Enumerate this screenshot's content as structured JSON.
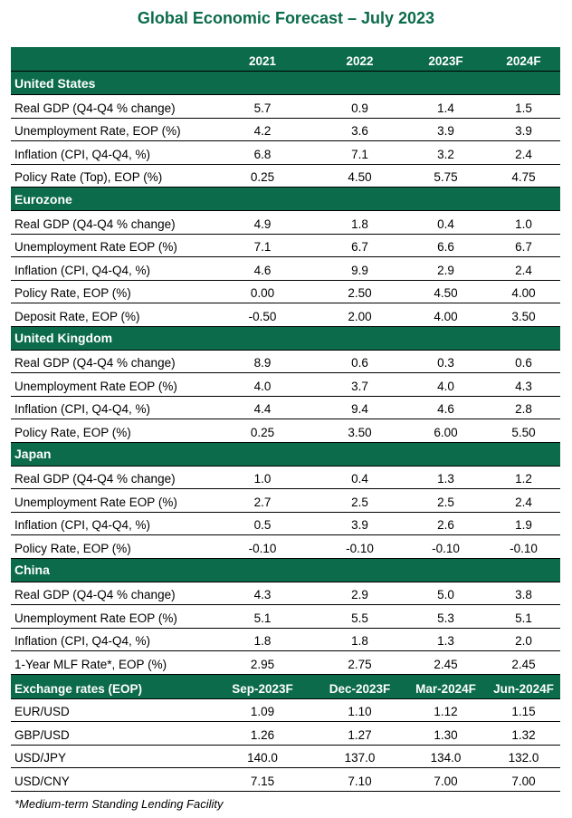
{
  "title": "Global Economic Forecast – July 2023",
  "colors": {
    "accent": "#0b6b4a"
  },
  "columns": [
    "2021",
    "2022",
    "2023F",
    "2024F"
  ],
  "sections": [
    {
      "name": "United States",
      "rows": [
        {
          "label": "Real GDP (Q4-Q4 % change)",
          "values": [
            "5.7",
            "0.9",
            "1.4",
            "1.5"
          ]
        },
        {
          "label": "Unemployment Rate, EOP (%)",
          "values": [
            "4.2",
            "3.6",
            "3.9",
            "3.9"
          ]
        },
        {
          "label": "Inflation (CPI, Q4-Q4, %)",
          "values": [
            "6.8",
            "7.1",
            "3.2",
            "2.4"
          ]
        },
        {
          "label": "Policy Rate (Top), EOP (%)",
          "values": [
            "0.25",
            "4.50",
            "5.75",
            "4.75"
          ]
        }
      ]
    },
    {
      "name": "Eurozone",
      "rows": [
        {
          "label": "Real GDP (Q4-Q4 % change)",
          "values": [
            "4.9",
            "1.8",
            "0.4",
            "1.0"
          ]
        },
        {
          "label": "Unemployment Rate EOP (%)",
          "values": [
            "7.1",
            "6.7",
            "6.6",
            "6.7"
          ]
        },
        {
          "label": "Inflation (CPI, Q4-Q4, %)",
          "values": [
            "4.6",
            "9.9",
            "2.9",
            "2.4"
          ]
        },
        {
          "label": "Policy Rate, EOP (%)",
          "values": [
            "0.00",
            "2.50",
            "4.50",
            "4.00"
          ]
        },
        {
          "label": "Deposit Rate, EOP (%)",
          "values": [
            "-0.50",
            "2.00",
            "4.00",
            "3.50"
          ]
        }
      ]
    },
    {
      "name": "United Kingdom",
      "rows": [
        {
          "label": "Real GDP (Q4-Q4 % change)",
          "values": [
            "8.9",
            "0.6",
            "0.3",
            "0.6"
          ]
        },
        {
          "label": "Unemployment Rate EOP (%)",
          "values": [
            "4.0",
            "3.7",
            "4.0",
            "4.3"
          ]
        },
        {
          "label": "Inflation (CPI, Q4-Q4, %)",
          "values": [
            "4.4",
            "9.4",
            "4.6",
            "2.8"
          ]
        },
        {
          "label": "Policy Rate, EOP (%)",
          "values": [
            "0.25",
            "3.50",
            "6.00",
            "5.50"
          ]
        }
      ]
    },
    {
      "name": "Japan",
      "rows": [
        {
          "label": "Real GDP (Q4-Q4 % change)",
          "values": [
            "1.0",
            "0.4",
            "1.3",
            "1.2"
          ]
        },
        {
          "label": "Unemployment Rate EOP (%)",
          "values": [
            "2.7",
            "2.5",
            "2.5",
            "2.4"
          ]
        },
        {
          "label": "Inflation (CPI, Q4-Q4, %)",
          "values": [
            "0.5",
            "3.9",
            "2.6",
            "1.9"
          ]
        },
        {
          "label": "Policy Rate, EOP (%)",
          "values": [
            "-0.10",
            "-0.10",
            "-0.10",
            "-0.10"
          ]
        }
      ]
    },
    {
      "name": "China",
      "rows": [
        {
          "label": "Real GDP (Q4-Q4 % change)",
          "values": [
            "4.3",
            "2.9",
            "5.0",
            "3.8"
          ]
        },
        {
          "label": "Unemployment Rate EOP (%)",
          "values": [
            "5.1",
            "5.5",
            "5.3",
            "5.1"
          ]
        },
        {
          "label": "Inflation (CPI, Q4-Q4, %)",
          "values": [
            "1.8",
            "1.8",
            "1.3",
            "2.0"
          ]
        },
        {
          "label": "1-Year MLF Rate*, EOP (%)",
          "values": [
            "2.95",
            "2.75",
            "2.45",
            "2.45"
          ]
        }
      ]
    }
  ],
  "fx": {
    "header": "Exchange rates (EOP)",
    "columns": [
      "Sep-2023F",
      "Dec-2023F",
      "Mar-2024F",
      "Jun-2024F"
    ],
    "rows": [
      {
        "label": "EUR/USD",
        "values": [
          "1.09",
          "1.10",
          "1.12",
          "1.15"
        ]
      },
      {
        "label": "GBP/USD",
        "values": [
          "1.26",
          "1.27",
          "1.30",
          "1.32"
        ]
      },
      {
        "label": "USD/JPY",
        "values": [
          "140.0",
          "137.0",
          "134.0",
          "132.0"
        ]
      },
      {
        "label": "USD/CNY",
        "values": [
          "7.15",
          "7.10",
          "7.00",
          "7.00"
        ]
      }
    ]
  },
  "footnote": "*Medium-term Standing Lending Facility"
}
